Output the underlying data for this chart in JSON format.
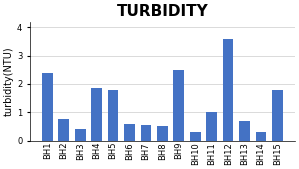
{
  "title": "TURBIDITY",
  "ylabel": "turbidity(NTU)",
  "categories": [
    "BH1",
    "BH2",
    "BH3",
    "BH4",
    "BH5",
    "BH6",
    "BH7",
    "BH8",
    "BH9",
    "BH10",
    "BH11",
    "BH12",
    "BH13",
    "BH14",
    "BH15"
  ],
  "values": [
    2.4,
    0.75,
    0.4,
    1.85,
    1.8,
    0.6,
    0.55,
    0.5,
    2.5,
    0.3,
    1.0,
    3.6,
    0.7,
    0.3,
    1.8
  ],
  "bar_color": "#4472C4",
  "ylim": [
    0,
    4.2
  ],
  "yticks": [
    0,
    1,
    2,
    3,
    4
  ],
  "background_color": "#ffffff",
  "grid_color": "#cccccc",
  "title_fontsize": 11,
  "ylabel_fontsize": 7,
  "tick_fontsize": 6
}
